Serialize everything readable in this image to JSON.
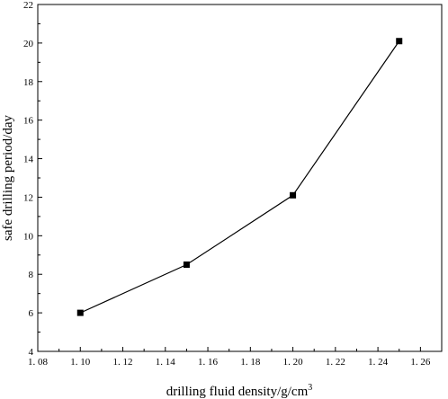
{
  "chart_data": {
    "type": "line",
    "title": "",
    "xlabel": "drilling fluid density/g/cm",
    "xlabel_superscript": "3",
    "ylabel": "safe drilling period/day",
    "xlim": [
      1.08,
      1.27
    ],
    "ylim": [
      4,
      22
    ],
    "x_ticks": [
      1.08,
      1.1,
      1.12,
      1.14,
      1.16,
      1.18,
      1.2,
      1.22,
      1.24,
      1.26
    ],
    "x_tick_labels": [
      "1. 08",
      "1. 10",
      "1. 12",
      "1. 14",
      "1. 16",
      "1. 18",
      "1. 20",
      "1. 22",
      "1. 24",
      "1. 26"
    ],
    "y_ticks": [
      4,
      6,
      8,
      10,
      12,
      14,
      16,
      18,
      20,
      22
    ],
    "y_tick_labels": [
      "4",
      "6",
      "8",
      "10",
      "12",
      "14",
      "16",
      "18",
      "20",
      "22"
    ],
    "grid": false,
    "legend": "none",
    "series": [
      {
        "marker": "square",
        "color": "#000000",
        "x": [
          1.1,
          1.15,
          1.2,
          1.25
        ],
        "y": [
          6.0,
          8.5,
          12.1,
          20.1
        ]
      }
    ]
  }
}
